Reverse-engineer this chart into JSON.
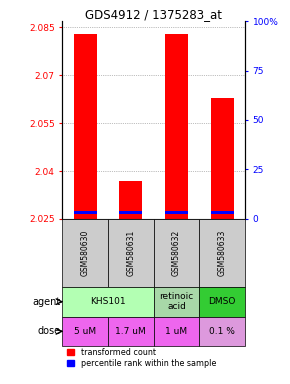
{
  "title": "GDS4912 / 1375283_at",
  "samples": [
    "GSM580630",
    "GSM580631",
    "GSM580632",
    "GSM580633"
  ],
  "red_values": [
    2.083,
    2.037,
    2.083,
    2.063
  ],
  "blue_values": [
    2.027,
    2.027,
    2.027,
    2.027
  ],
  "red_base": 2.025,
  "ylim_min": 2.025,
  "ylim_max": 2.087,
  "yticks_left": [
    2.025,
    2.04,
    2.055,
    2.07,
    2.085
  ],
  "yticks_right_labels": [
    "0",
    "25",
    "50",
    "75",
    "100%"
  ],
  "agent_data": [
    [
      0,
      1,
      "KHS101",
      "#b3ffb3"
    ],
    [
      2,
      2,
      "retinoic\nacid",
      "#a8d8a8"
    ],
    [
      3,
      3,
      "DMSO",
      "#33cc33"
    ]
  ],
  "dose_data": [
    [
      0,
      "5 uM",
      "#ee66ee"
    ],
    [
      1,
      "1.7 uM",
      "#ee66ee"
    ],
    [
      2,
      "1 uM",
      "#ee66ee"
    ],
    [
      3,
      "0.1 %",
      "#dd99dd"
    ]
  ],
  "gsm_bg": "#cccccc",
  "bar_width": 0.5,
  "legend_red": "transformed count",
  "legend_blue": "percentile rank within the sample"
}
